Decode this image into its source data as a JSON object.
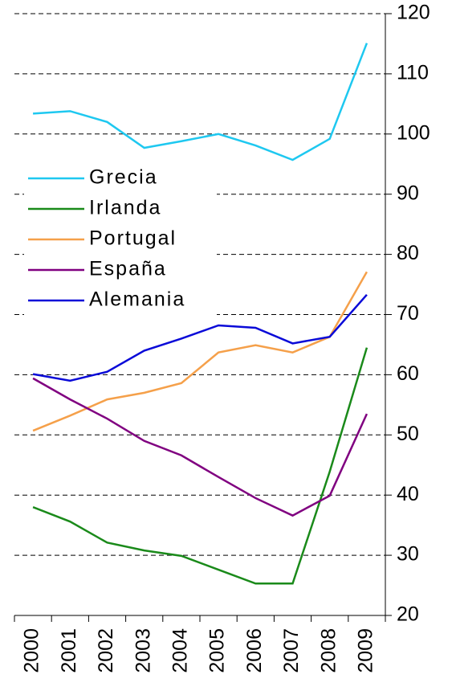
{
  "chart_data": {
    "type": "line",
    "categories": [
      "2000",
      "2001",
      "2002",
      "2003",
      "2004",
      "2005",
      "2006",
      "2007",
      "2008",
      "2009"
    ],
    "series": [
      {
        "name": "Grecia",
        "color": "#1ec8f0",
        "values": [
          103.4,
          103.8,
          102,
          97.7,
          98.8,
          100,
          98.1,
          95.7,
          99.2,
          115.1
        ]
      },
      {
        "name": "Irlanda",
        "color": "#1a8a1a",
        "values": [
          38.0,
          35.6,
          32.1,
          30.8,
          29.9,
          27.6,
          25.3,
          25.3,
          43.9,
          64.5
        ]
      },
      {
        "name": "Portugal",
        "color": "#f5a04a",
        "values": [
          50.7,
          53.2,
          55.9,
          57.0,
          58.6,
          63.7,
          64.9,
          63.7,
          66.3,
          77.1
        ]
      },
      {
        "name": "España",
        "color": "#800080",
        "values": [
          59.4,
          55.9,
          52.7,
          49.0,
          46.6,
          43.0,
          39.5,
          36.6,
          39.9,
          53.5
        ]
      },
      {
        "name": "Alemania",
        "color": "#0a0ad8",
        "values": [
          60.1,
          59.0,
          60.5,
          64.0,
          66.0,
          68.2,
          67.8,
          65.2,
          66.3,
          73.3
        ]
      }
    ],
    "ylim": [
      20,
      120
    ],
    "yticks": [
      20,
      30,
      40,
      50,
      60,
      70,
      80,
      90,
      100,
      110,
      120
    ],
    "grid": true,
    "legend": "left"
  }
}
